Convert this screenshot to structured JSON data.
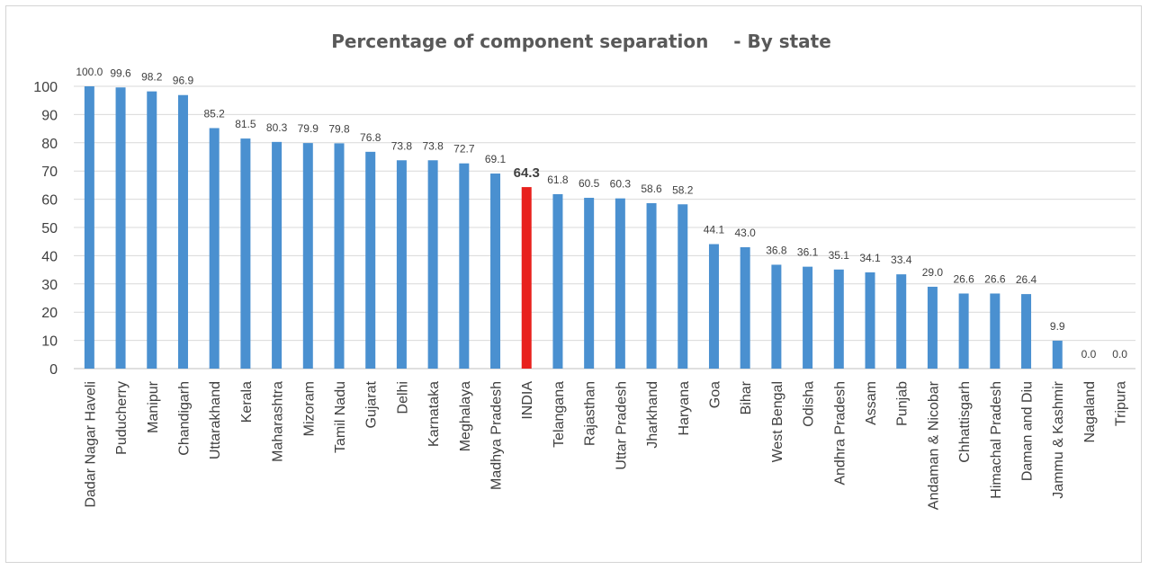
{
  "chart_data": {
    "type": "bar",
    "title": "Percentage of component separation    - By state",
    "xlabel": "",
    "ylabel": "",
    "ylim": [
      0,
      100
    ],
    "yticks": [
      0,
      10,
      20,
      30,
      40,
      50,
      60,
      70,
      80,
      90,
      100
    ],
    "grid": true,
    "legend": "none",
    "bar_color": "#4a90d0",
    "highlight_color": "#e8211d",
    "highlight_category": "INDIA",
    "categories": [
      "Dadar Nagar Haveli",
      "Puducherry",
      "Manipur",
      "Chandigarh",
      "Uttarakhand",
      "Kerala",
      "Maharashtra",
      "Mizoram",
      "Tamil Nadu",
      "Gujarat",
      "Delhi",
      "Karnataka",
      "Meghalaya",
      "Madhya Pradesh",
      "INDIA",
      "Telangana",
      "Rajasthan",
      "Uttar Pradesh",
      "Jharkhand",
      "Haryana",
      "Goa",
      "Bihar",
      "West Bengal",
      "Odisha",
      "Andhra Pradesh",
      "Assam",
      "Punjab",
      "Andaman & Nicobar",
      "Chhattisgarh",
      "Himachal Pradesh",
      "Daman and Diu",
      "Jammu & Kashmir",
      "Nagaland",
      "Tripura"
    ],
    "values": [
      100.0,
      99.6,
      98.2,
      96.9,
      85.2,
      81.5,
      80.3,
      79.9,
      79.8,
      76.8,
      73.8,
      73.8,
      72.7,
      69.1,
      64.3,
      61.8,
      60.5,
      60.3,
      58.6,
      58.2,
      44.1,
      43.0,
      36.8,
      36.1,
      35.1,
      34.1,
      33.4,
      29.0,
      26.6,
      26.6,
      26.4,
      9.9,
      0.0,
      0.0
    ],
    "value_labels": [
      "100.0",
      "99.6",
      "98.2",
      "96.9",
      "85.2",
      "81.5",
      "80.3",
      "79.9",
      "79.8",
      "76.8",
      "73.8",
      "73.8",
      "72.7",
      "69.1",
      "64.3",
      "61.8",
      "60.5",
      "60.3",
      "58.6",
      "58.2",
      "44.1",
      "43.0",
      "36.8",
      "36.1",
      "35.1",
      "34.1",
      "33.4",
      "29.0",
      "26.6",
      "26.6",
      "26.4",
      "9.9",
      "0.0",
      "0.0"
    ]
  }
}
